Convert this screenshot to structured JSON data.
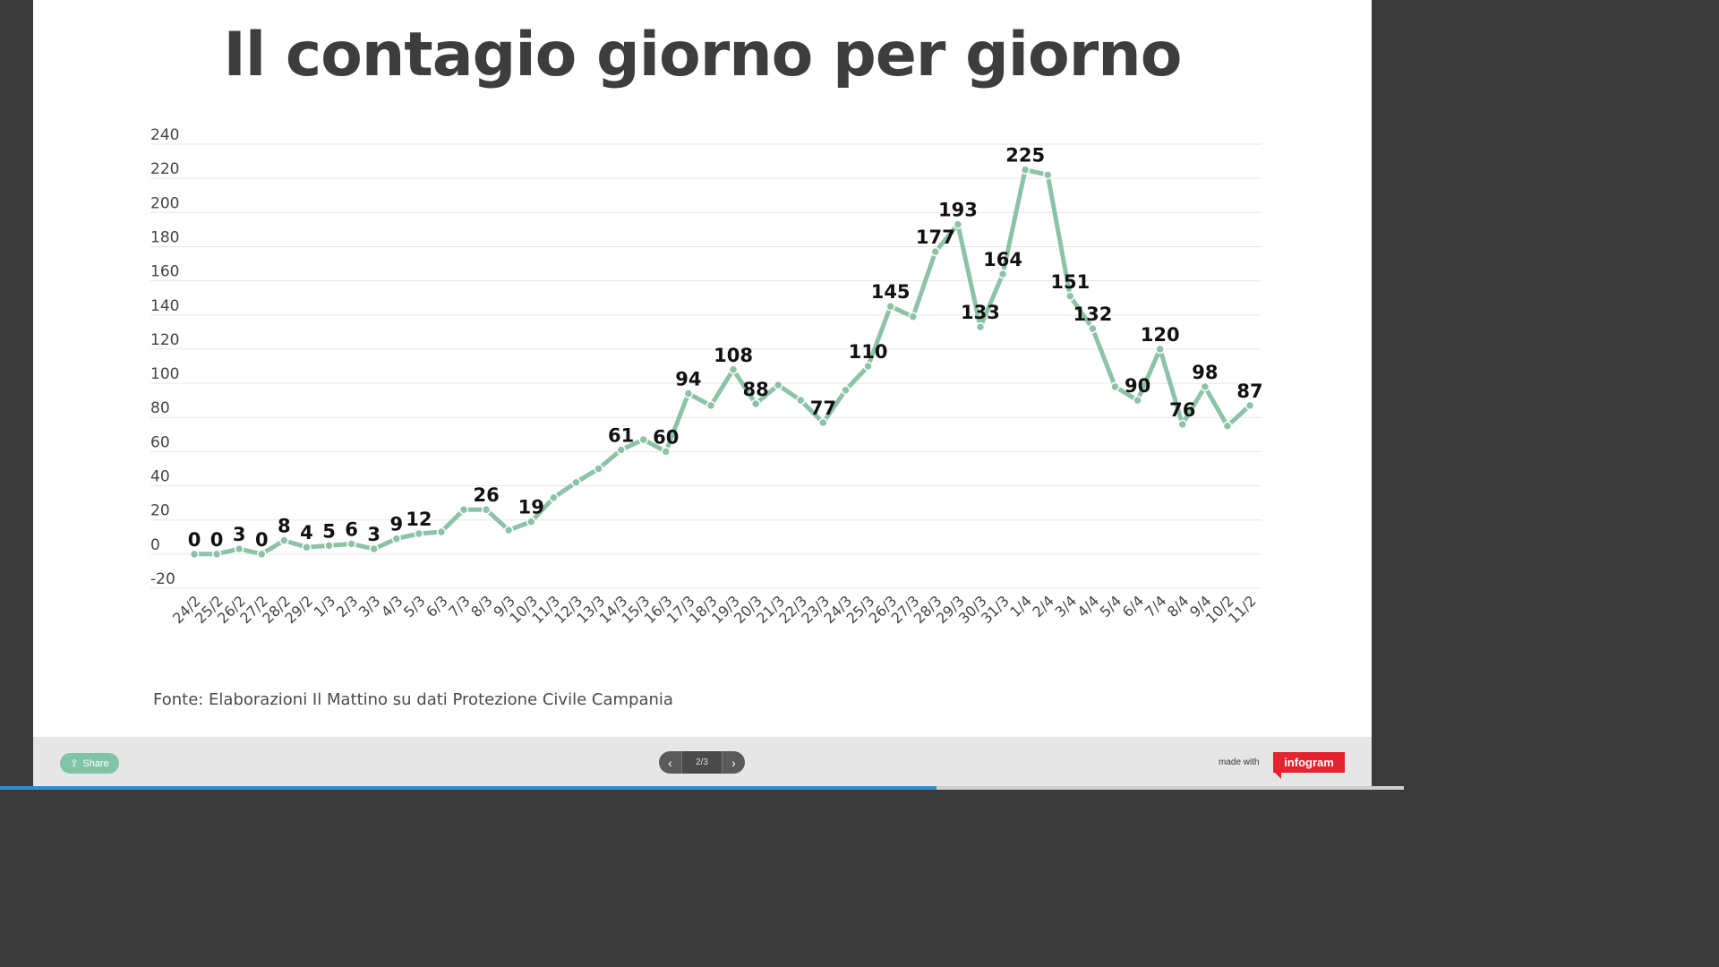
{
  "title": "Il contagio giorno per giorno",
  "source": "Fonte: Elaborazioni Il Mattino su dati Protezione Civile Campania",
  "footer": {
    "share_label": "Share",
    "share_icon": "share-icon",
    "prev_icon": "chevron-left-icon",
    "next_icon": "chevron-right-icon",
    "page_indicator": "2/3",
    "made_with": "made with",
    "logo_text": "infogram",
    "progress": 0.667
  },
  "colors": {
    "line": "#8cc3a6",
    "background": "#ffffff",
    "grid": "#e6e6e6",
    "logo": "#e4232f",
    "progress": "#2f8fd6"
  },
  "chart_data": {
    "type": "line",
    "title": "Il contagio giorno per giorno",
    "xlabel": "",
    "ylabel": "",
    "ylim": [
      -20,
      240
    ],
    "yticks": [
      240,
      220,
      200,
      180,
      160,
      140,
      120,
      100,
      80,
      60,
      40,
      20,
      0,
      -20
    ],
    "grid": true,
    "categories": [
      "24/2",
      "25/2",
      "26/2",
      "27/2",
      "28/2",
      "29/2",
      "1/3",
      "2/3",
      "3/3",
      "4/3",
      "5/3",
      "6/3",
      "7/3",
      "8/3",
      "9/3",
      "10/3",
      "11/3",
      "12/3",
      "13/3",
      "14/3",
      "15/3",
      "16/3",
      "17/3",
      "18/3",
      "19/3",
      "20/3",
      "21/3",
      "22/3",
      "23/3",
      "24/3",
      "25/3",
      "26/3",
      "27/3",
      "28/3",
      "29/3",
      "30/3",
      "31/3",
      "1/4",
      "2/4",
      "3/4",
      "4/4",
      "5/4",
      "6/4",
      "7/4",
      "8/4",
      "9/4",
      "10/2",
      "11/2"
    ],
    "series": [
      {
        "values": [
          0,
          0,
          3,
          0,
          8,
          4,
          5,
          6,
          3,
          9,
          12,
          13,
          26,
          26,
          14,
          19,
          33,
          42,
          50,
          61,
          67,
          60,
          94,
          87,
          108,
          88,
          99,
          90,
          77,
          96,
          110,
          145,
          139,
          177,
          193,
          133,
          164,
          225,
          222,
          151,
          132,
          98,
          90,
          120,
          76,
          98,
          75,
          87
        ],
        "labels": [
          "0",
          "0",
          "3",
          "0",
          "8",
          "4",
          "5",
          "6",
          "3",
          "9",
          "12",
          "",
          "",
          "26",
          "",
          "19",
          "",
          "",
          "",
          "61",
          "",
          "60",
          "94",
          "",
          "108",
          "88",
          "",
          "",
          "77",
          "",
          "110",
          "145",
          "",
          "177",
          "193",
          "133",
          "164",
          "225",
          "",
          "151",
          "132",
          "",
          "90",
          "120",
          "76",
          "98",
          "",
          "87"
        ]
      }
    ]
  }
}
